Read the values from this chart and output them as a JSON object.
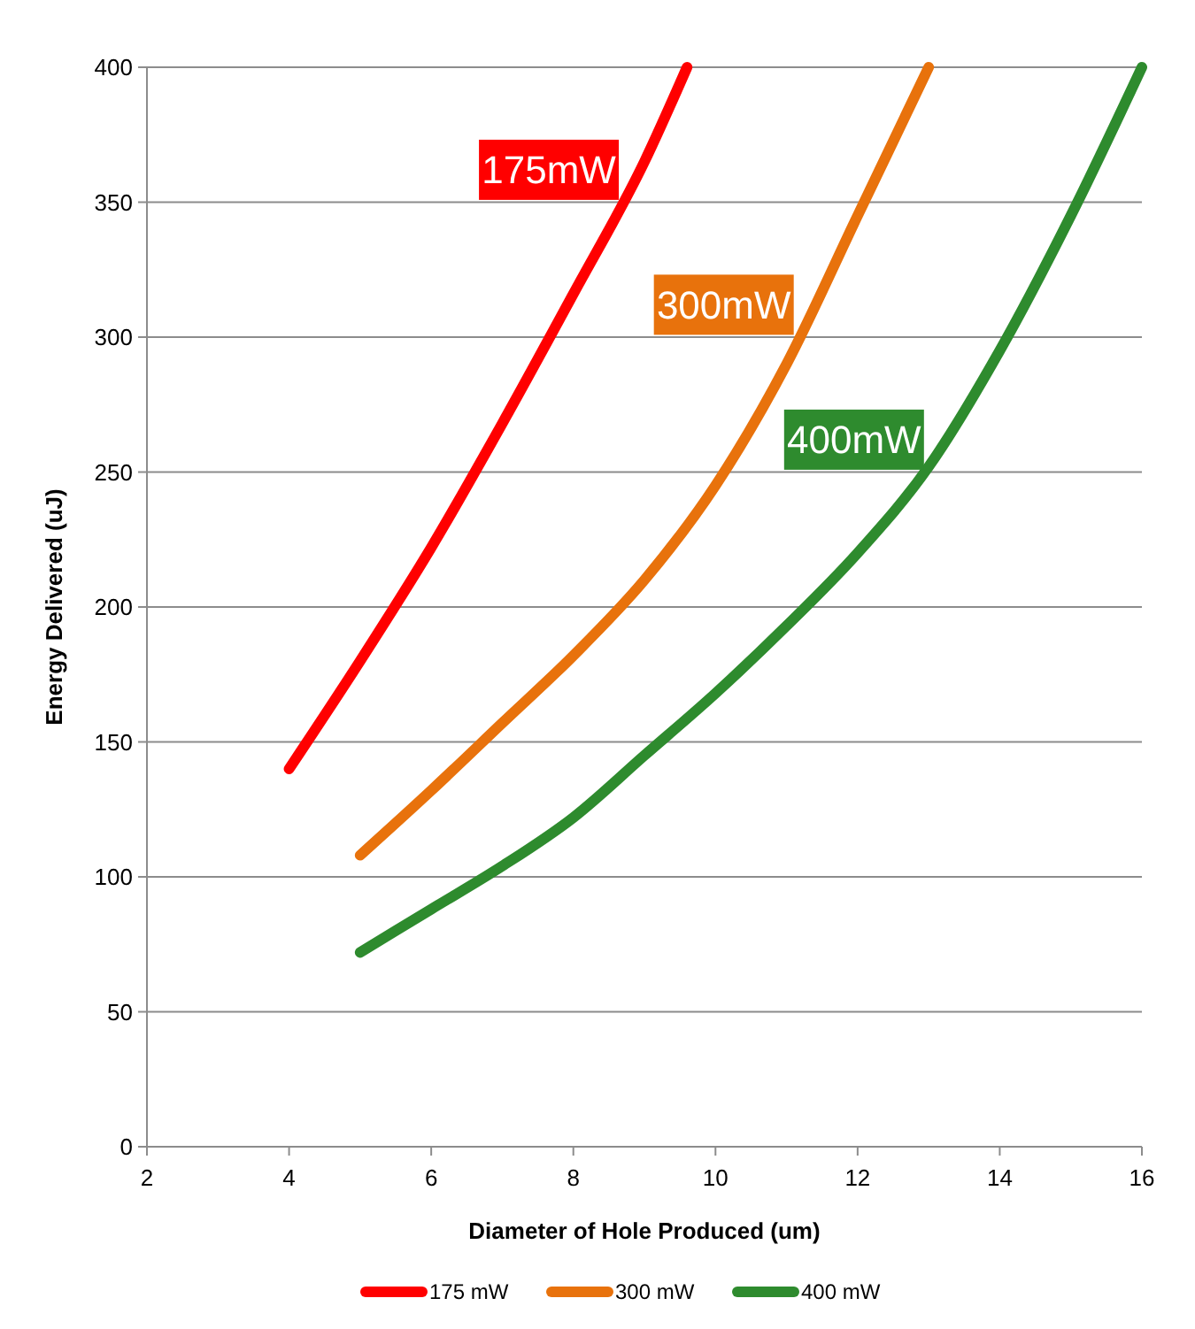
{
  "chart_data": {
    "type": "line",
    "xlabel": "Diameter of Hole Produced (um)",
    "ylabel": "Energy Delivered (uJ)",
    "xlim": [
      2,
      16
    ],
    "xticks": [
      2,
      4,
      6,
      8,
      10,
      12,
      14,
      16
    ],
    "ylim": [
      0,
      400
    ],
    "yticks": [
      0,
      50,
      100,
      150,
      200,
      250,
      300,
      350,
      400
    ],
    "grid": "y",
    "legend": "bottom",
    "marker": "none",
    "line_style": "solid",
    "series": [
      {
        "name": "175 mW",
        "color": "#ff0000",
        "x": [
          4,
          5,
          6,
          7,
          8,
          9,
          9.6
        ],
        "values": [
          140,
          180,
          222,
          268,
          316,
          365,
          400
        ]
      },
      {
        "name": "300 mW",
        "color": "#e8720c",
        "x": [
          5,
          6,
          7,
          8,
          9,
          10,
          11,
          12,
          13
        ],
        "values": [
          108,
          132,
          157,
          182,
          210,
          245,
          290,
          345,
          400
        ]
      },
      {
        "name": "400 mW",
        "color": "#2e8b2e",
        "x": [
          5,
          6,
          7,
          8,
          9,
          10,
          11,
          12,
          13,
          14,
          15,
          16
        ],
        "values": [
          72,
          88,
          104,
          122,
          145,
          168,
          193,
          220,
          252,
          295,
          345,
          400
        ]
      }
    ],
    "annotations": [
      "175mW",
      "300mW",
      "400mW"
    ]
  }
}
